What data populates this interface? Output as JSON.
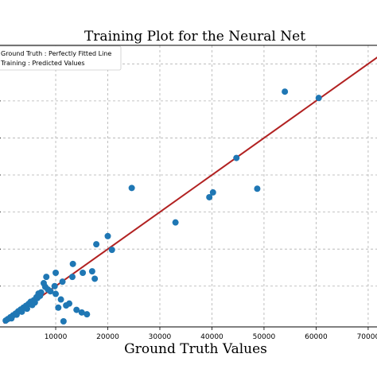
{
  "chart_data": {
    "type": "scatter",
    "title": "Training Plot for the Neural Net",
    "xlabel": "Ground Truth Values",
    "ylabel": "",
    "xlim": [
      -1000,
      72000
    ],
    "ylim": [
      -1000,
      75000
    ],
    "xticks": [
      10000,
      20000,
      30000,
      40000,
      50000,
      60000,
      70000
    ],
    "xtick_labels": [
      "10000",
      "20000",
      "30000",
      "40000",
      "50000",
      "60000",
      "70000"
    ],
    "yticks": [
      10000,
      20000,
      30000,
      40000,
      50000,
      60000,
      70000
    ],
    "grid": true,
    "legend_position": "top-left",
    "legend": [
      {
        "label": "Ground Truth : Perfectly Fitted Line",
        "kind": "line",
        "color": "#b22222"
      },
      {
        "label": "Training : Predicted Values",
        "kind": "marker",
        "color": "#1f77b4"
      }
    ],
    "series": [
      {
        "name": "Ground Truth : Perfectly Fitted Line",
        "kind": "line",
        "color": "#b22222",
        "x": [
          0,
          72000
        ],
        "y": [
          0,
          72000
        ]
      },
      {
        "name": "Training : Predicted Values",
        "kind": "scatter",
        "color": "#1f77b4",
        "x": [
          54000,
          60500,
          44700,
          24600,
          40200,
          48700,
          39500,
          33000,
          20000,
          17800,
          20800,
          13300,
          17000,
          15200,
          17500,
          13200,
          11300,
          10000,
          9800,
          8000,
          8200,
          7700,
          7200,
          6700,
          6300,
          5800,
          5200,
          4800,
          4300,
          3800,
          3300,
          2800,
          2300,
          1800,
          1300,
          800,
          400,
          12600,
          10500,
          11500,
          6500,
          6000,
          7000,
          5500,
          4500,
          3500,
          2500,
          1500,
          9000,
          8500,
          10000,
          11000,
          12000,
          14000,
          15000,
          16000
        ],
        "y": [
          62500,
          60800,
          44600,
          36500,
          35300,
          36300,
          34000,
          27200,
          23500,
          21300,
          19800,
          16000,
          14000,
          13600,
          12000,
          12500,
          11200,
          13600,
          10000,
          9800,
          12500,
          10800,
          8300,
          8000,
          7000,
          6200,
          5800,
          5200,
          4700,
          4200,
          3700,
          3200,
          2600,
          2100,
          1600,
          1100,
          700,
          5300,
          4200,
          500,
          6800,
          5600,
          7400,
          4900,
          3900,
          3100,
          2300,
          1300,
          8600,
          9100,
          7900,
          6400,
          4800,
          3600,
          2900,
          2400
        ]
      }
    ]
  }
}
